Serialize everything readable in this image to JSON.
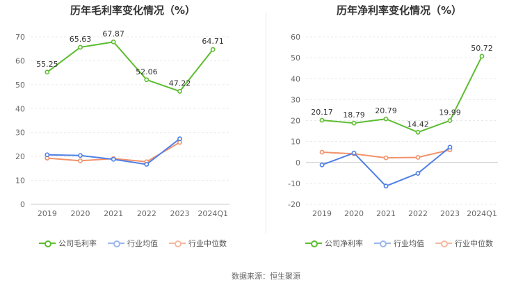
{
  "source": "数据来源：恒生聚源",
  "colors": {
    "company": "#5cbd2f",
    "industry_avg": "#4f7fe6",
    "industry_median": "#f2916b"
  },
  "chart_data": [
    {
      "type": "line",
      "title": "历年毛利率变化情况（%）",
      "categories": [
        "2019",
        "2020",
        "2021",
        "2022",
        "2023",
        "2024Q1"
      ],
      "ylim": [
        0,
        70
      ],
      "yticks": [
        0,
        10,
        20,
        30,
        40,
        50,
        60,
        70
      ],
      "grid": true,
      "legend_position": "bottom",
      "series": [
        {
          "name": "公司毛利率",
          "values": [
            55.25,
            65.63,
            67.87,
            52.06,
            47.22,
            64.71
          ],
          "labels": [
            "55.25",
            "65.63",
            "67.87",
            "52.06",
            "47.22",
            "64.71"
          ]
        },
        {
          "name": "行业均值",
          "values": [
            20.7,
            20.4,
            18.8,
            16.7,
            27.4,
            null
          ]
        },
        {
          "name": "行业中位数",
          "values": [
            19.3,
            18.2,
            19.1,
            17.8,
            25.9,
            null
          ]
        }
      ]
    },
    {
      "type": "line",
      "title": "历年净利率变化情况（%）",
      "categories": [
        "2019",
        "2020",
        "2021",
        "2022",
        "2023",
        "2024Q1"
      ],
      "ylim": [
        -20,
        60
      ],
      "yticks": [
        -20,
        -10,
        0,
        10,
        20,
        30,
        40,
        50,
        60
      ],
      "grid": true,
      "legend_position": "bottom",
      "series": [
        {
          "name": "公司净利率",
          "values": [
            20.17,
            18.79,
            20.79,
            14.42,
            19.99,
            50.72
          ],
          "labels": [
            "20.17",
            "18.79",
            "20.79",
            "14.42",
            "19.99",
            "50.72"
          ]
        },
        {
          "name": "行业均值",
          "values": [
            -1.2,
            4.5,
            -11.3,
            -5.2,
            7.3,
            null
          ]
        },
        {
          "name": "行业中位数",
          "values": [
            4.9,
            4.1,
            2.2,
            2.4,
            6.0,
            null
          ]
        }
      ]
    }
  ]
}
